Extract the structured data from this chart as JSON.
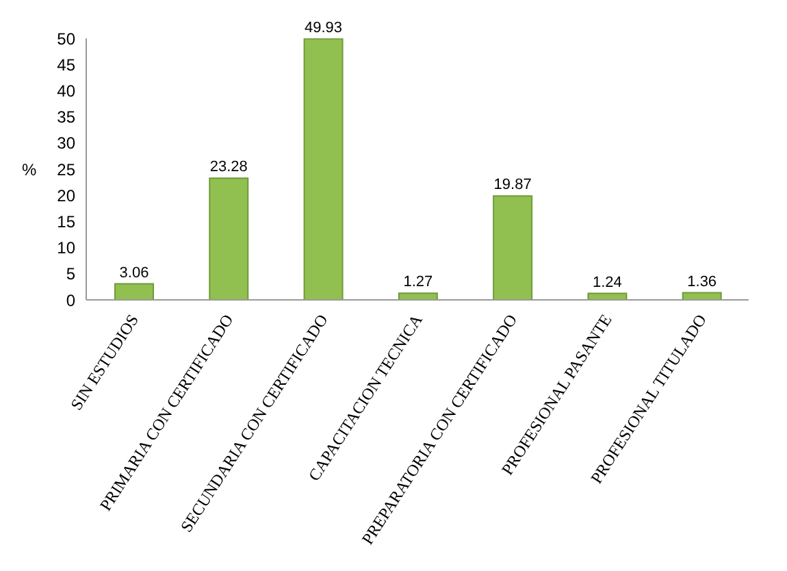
{
  "chart_data": {
    "type": "bar",
    "ylabel": "%",
    "categories": [
      "SIN ESTUDIOS",
      "PRIMARIA CON CERTIFICADO",
      "SECUNDARIA CON CERTIFICADO",
      "CAPACITACION TECNICA",
      "PREPARATORIA CON CERTIFICADO",
      "PROFESIONAL PASANTE",
      "PROFESIONAL TITULADO"
    ],
    "values": [
      3.06,
      23.28,
      49.93,
      1.27,
      19.87,
      1.24,
      1.36
    ],
    "color": "#92c050",
    "ylim": [
      0,
      50
    ],
    "yticks": [
      0,
      5,
      10,
      15,
      20,
      25,
      30,
      35,
      40,
      45,
      50
    ],
    "data_labels": true
  }
}
